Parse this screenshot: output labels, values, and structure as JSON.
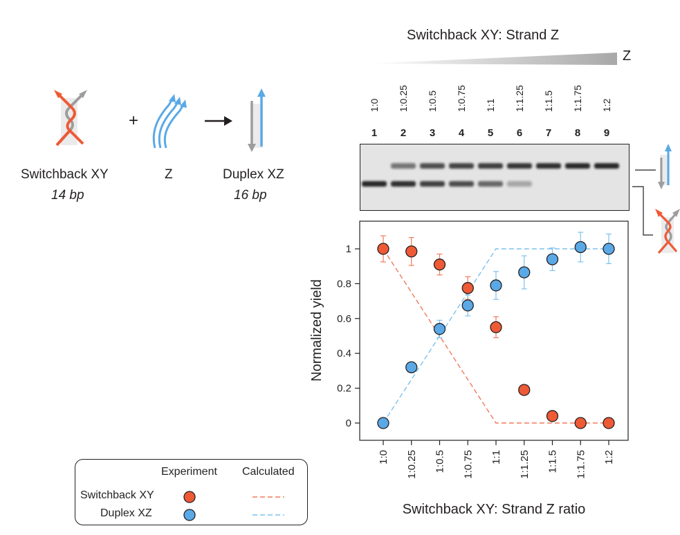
{
  "scheme": {
    "switchback_name": "Switchback XY",
    "switchback_bp": "14 bp",
    "plus": "+",
    "strand_z": "Z",
    "duplex_name": "Duplex XZ",
    "duplex_bp": "16 bp"
  },
  "gel": {
    "title": "Switchback XY: Strand Z",
    "gradient_label": "Z",
    "lanes": [
      {
        "num": "1",
        "ratio": "1:0"
      },
      {
        "num": "2",
        "ratio": "1:0.25"
      },
      {
        "num": "3",
        "ratio": "1:0.5"
      },
      {
        "num": "4",
        "ratio": "1:0.75"
      },
      {
        "num": "5",
        "ratio": "1:1"
      },
      {
        "num": "6",
        "ratio": "1:1.25"
      },
      {
        "num": "7",
        "ratio": "1:1.5"
      },
      {
        "num": "8",
        "ratio": "1:1.75"
      },
      {
        "num": "9",
        "ratio": "1:2"
      }
    ],
    "upper_band_intensity": [
      0.0,
      0.45,
      0.7,
      0.8,
      0.85,
      0.9,
      0.95,
      0.98,
      1.0
    ],
    "lower_band_intensity": [
      1.0,
      0.95,
      0.85,
      0.75,
      0.6,
      0.2,
      0.0,
      0.0,
      0.0
    ]
  },
  "colors": {
    "switchback": "#ee5a36",
    "duplex": "#5aa9e6",
    "switchback_line": "#f07a5c",
    "duplex_line": "#7cc0ee",
    "gray_strand": "#9d9d9d",
    "axis": "#231f20"
  },
  "chart_data": {
    "type": "scatter",
    "xlabel": "Switchback XY: Strand Z ratio",
    "ylabel": "Normalized yield",
    "categories": [
      "1:0",
      "1:0.25",
      "1:0.5",
      "1:0.75",
      "1:1",
      "1:1.25",
      "1:1.5",
      "1:1.75",
      "1:2"
    ],
    "ylim": [
      -0.1,
      1.15
    ],
    "yticks": [
      0,
      0.2,
      0.4,
      0.6,
      0.8,
      1
    ],
    "ytick_labels": [
      "0",
      "0.2",
      "0.4",
      "0.6",
      "0.8",
      "1"
    ],
    "series": [
      {
        "name": "Switchback XY",
        "kind": "experiment",
        "values": [
          1.0,
          0.985,
          0.91,
          0.775,
          0.55,
          0.19,
          0.04,
          0.0,
          0.0
        ],
        "errors": [
          0.075,
          0.08,
          0.06,
          0.065,
          0.06,
          0.02,
          0.015,
          0.0,
          0.0
        ]
      },
      {
        "name": "Duplex XZ",
        "kind": "experiment",
        "values": [
          0.0,
          0.32,
          0.54,
          0.675,
          0.79,
          0.865,
          0.94,
          1.01,
          1.0
        ],
        "errors": [
          0.0,
          0.02,
          0.05,
          0.06,
          0.08,
          0.095,
          0.065,
          0.085,
          0.085
        ]
      },
      {
        "name": "Switchback XY",
        "kind": "calculated",
        "values": [
          1.0,
          0.75,
          0.5,
          0.25,
          0.0,
          0.0,
          0.0,
          0.0,
          0.0
        ]
      },
      {
        "name": "Duplex XZ",
        "kind": "calculated",
        "values": [
          0.0,
          0.25,
          0.5,
          0.75,
          1.0,
          1.0,
          1.0,
          1.0,
          1.0
        ]
      }
    ],
    "legend": {
      "position": "bottom-left",
      "experiment_header": "Experiment",
      "calculated_header": "Calculated",
      "rows": [
        "Switchback XY",
        "Duplex XZ"
      ]
    }
  }
}
